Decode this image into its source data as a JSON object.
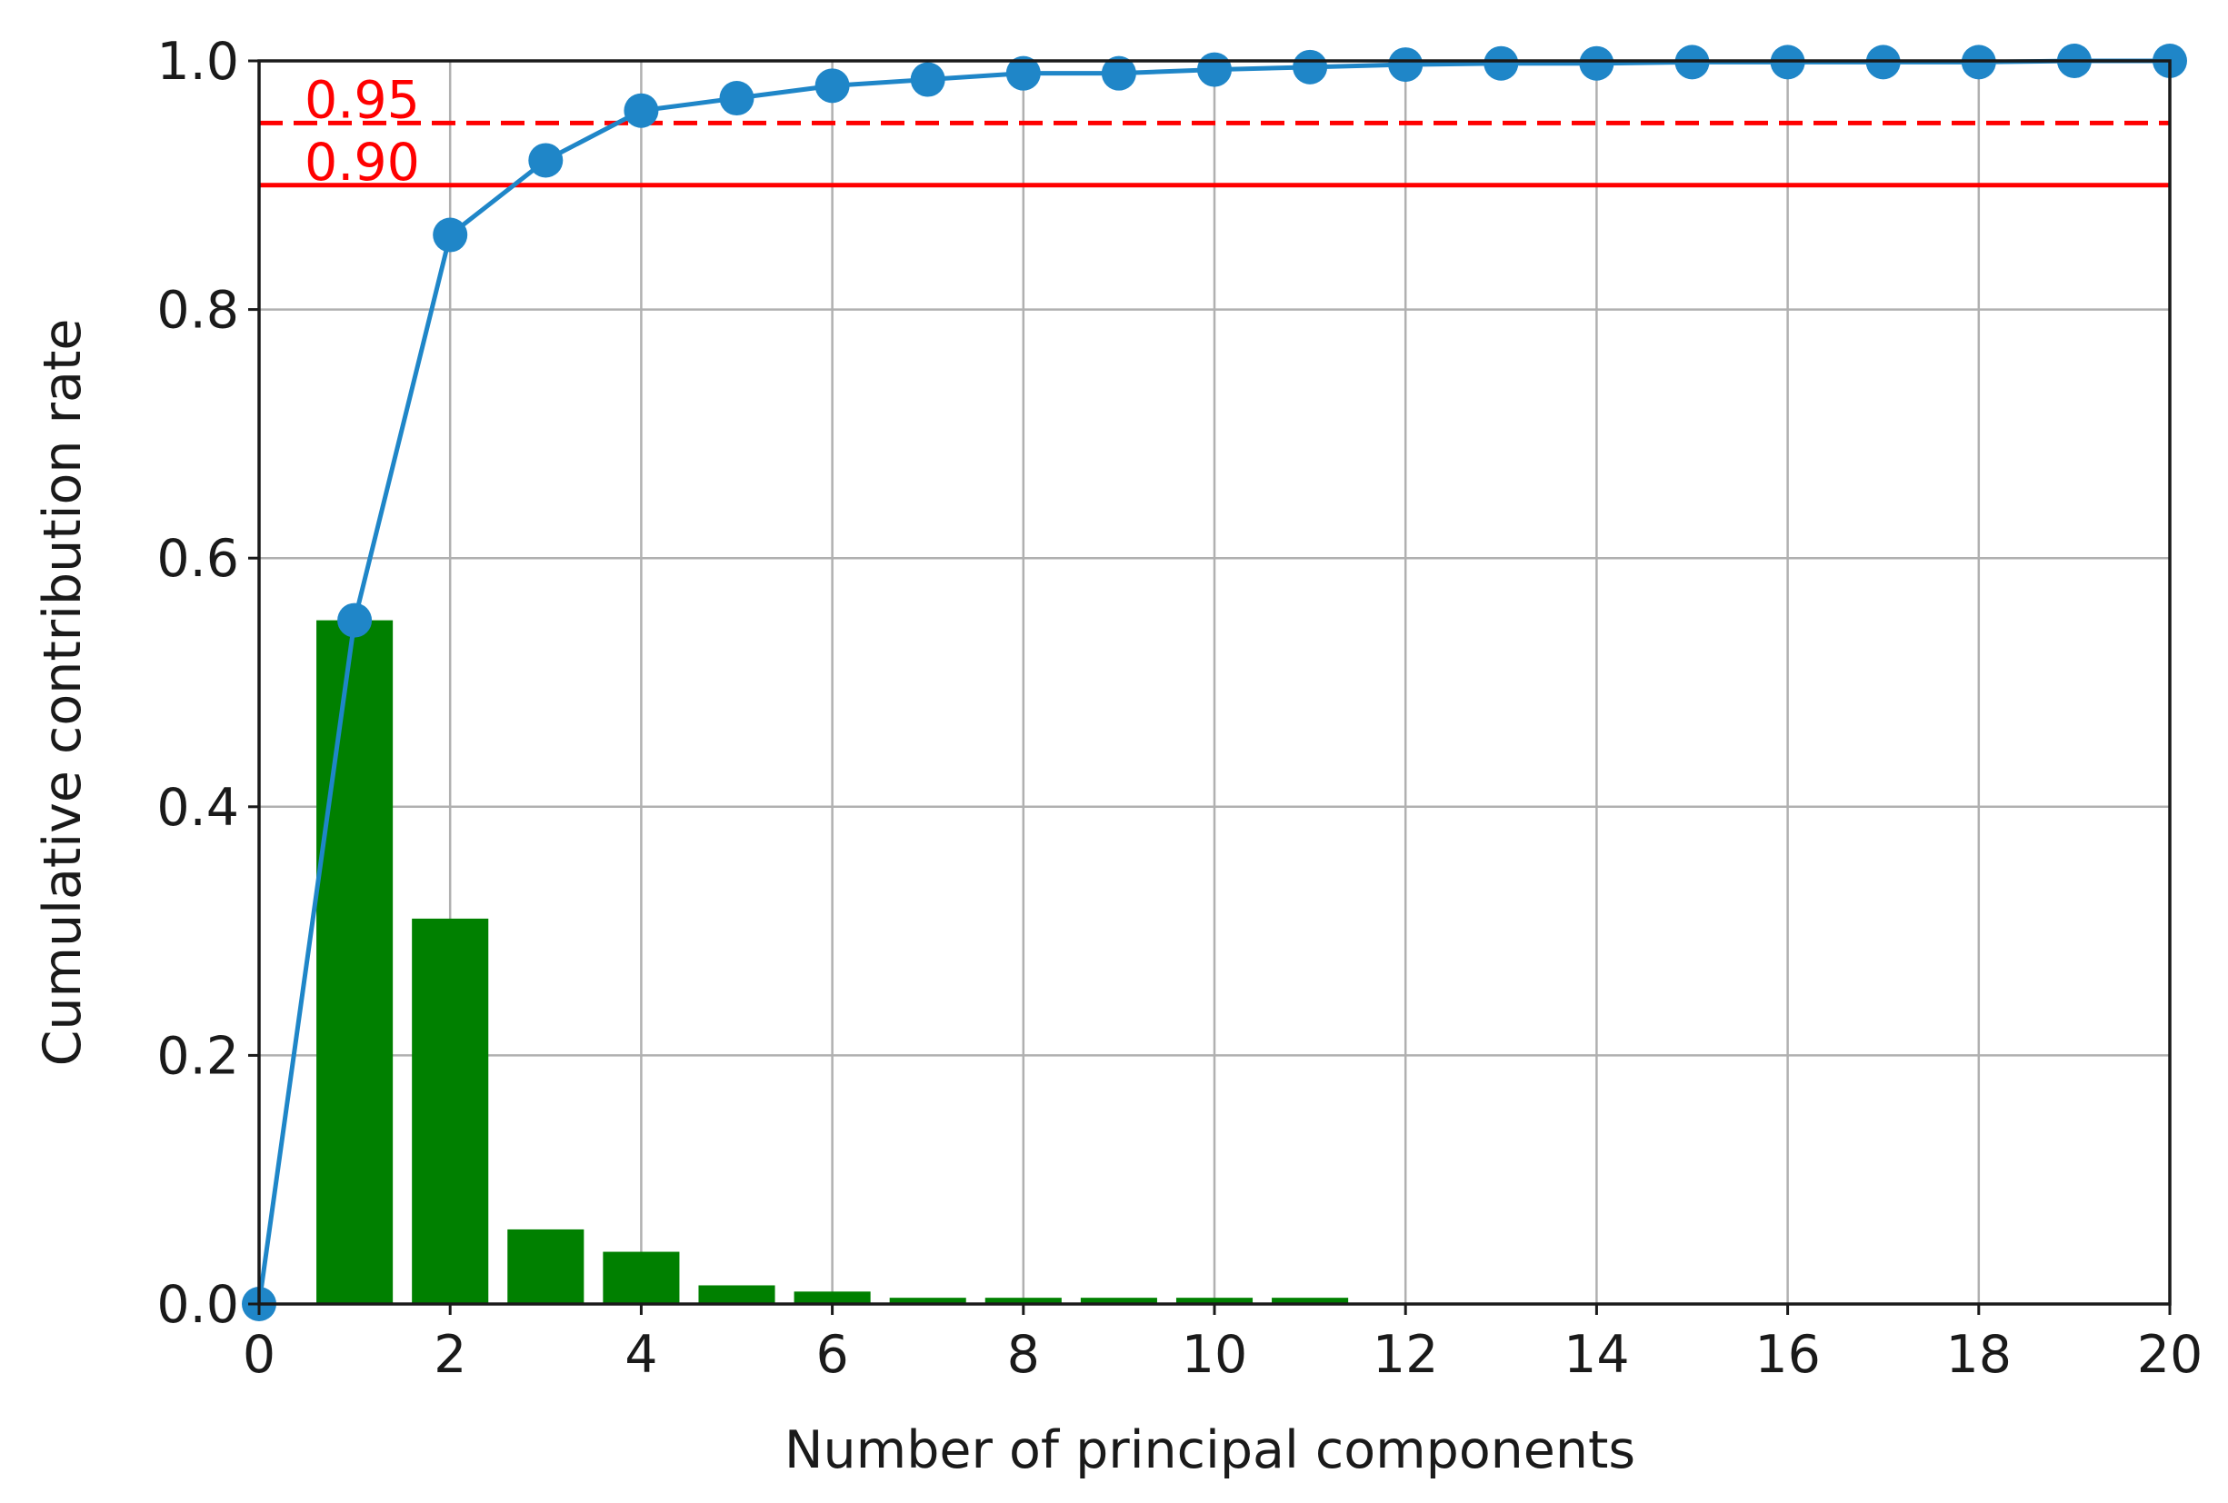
{
  "chart_data": {
    "type": "bar",
    "xlabel": "Number of principal components",
    "ylabel": "Cumulative contribution rate",
    "xlim": [
      0,
      20
    ],
    "ylim": [
      0,
      1.0
    ],
    "grid": true,
    "x_ticks": [
      0,
      2,
      4,
      6,
      8,
      10,
      12,
      14,
      16,
      18,
      20
    ],
    "x_tick_labels": [
      "0",
      "2",
      "4",
      "6",
      "8",
      "10",
      "12",
      "14",
      "16",
      "18",
      "20"
    ],
    "y_ticks": [
      0.0,
      0.2,
      0.4,
      0.6,
      0.8,
      1.0
    ],
    "y_tick_labels": [
      "0.0",
      "0.2",
      "0.4",
      "0.6",
      "0.8",
      "1.0"
    ],
    "bars": {
      "color": "#008000",
      "x": [
        1,
        2,
        3,
        4,
        5,
        6,
        7,
        8,
        9,
        10,
        11
      ],
      "values": [
        0.55,
        0.31,
        0.06,
        0.042,
        0.015,
        0.01,
        0.005,
        0.005,
        0.005,
        0.005,
        0.005
      ]
    },
    "line": {
      "color": "#1f86c8",
      "x": [
        0,
        1,
        2,
        3,
        4,
        5,
        6,
        7,
        8,
        9,
        10,
        11,
        12,
        13,
        14,
        15,
        16,
        17,
        18,
        19,
        20
      ],
      "values": [
        0.0,
        0.55,
        0.86,
        0.92,
        0.96,
        0.97,
        0.98,
        0.985,
        0.99,
        0.99,
        0.993,
        0.995,
        0.997,
        0.998,
        0.998,
        0.999,
        0.999,
        0.999,
        0.999,
        1.0,
        1.0
      ]
    },
    "thresholds": [
      {
        "value": 0.95,
        "label": "0.95",
        "style": "dashed",
        "color": "#ff0000"
      },
      {
        "value": 0.9,
        "label": "0.90",
        "style": "solid",
        "color": "#ff0000"
      }
    ]
  }
}
